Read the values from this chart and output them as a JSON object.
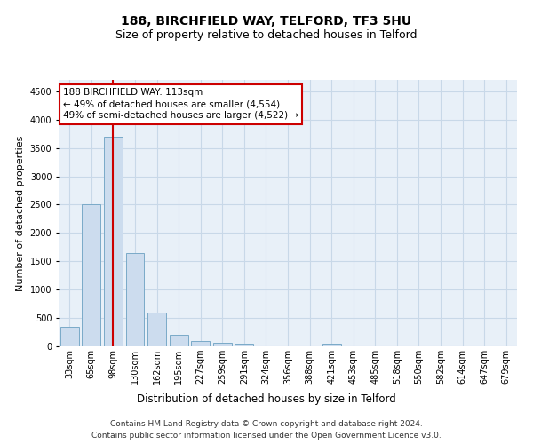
{
  "title": "188, BIRCHFIELD WAY, TELFORD, TF3 5HU",
  "subtitle": "Size of property relative to detached houses in Telford",
  "xlabel": "Distribution of detached houses by size in Telford",
  "ylabel": "Number of detached properties",
  "categories": [
    "33sqm",
    "65sqm",
    "98sqm",
    "130sqm",
    "162sqm",
    "195sqm",
    "227sqm",
    "259sqm",
    "291sqm",
    "324sqm",
    "356sqm",
    "388sqm",
    "421sqm",
    "453sqm",
    "485sqm",
    "518sqm",
    "550sqm",
    "582sqm",
    "614sqm",
    "647sqm",
    "679sqm"
  ],
  "values": [
    350,
    2500,
    3700,
    1650,
    600,
    200,
    100,
    60,
    40,
    0,
    0,
    0,
    50,
    0,
    0,
    0,
    0,
    0,
    0,
    0,
    0
  ],
  "bar_color": "#ccdcee",
  "bar_edge_color": "#7aaac8",
  "red_line_index": 2,
  "property_label": "188 BIRCHFIELD WAY: 113sqm",
  "annotation_line1": "← 49% of detached houses are smaller (4,554)",
  "annotation_line2": "49% of semi-detached houses are larger (4,522) →",
  "annotation_box_facecolor": "#ffffff",
  "annotation_box_edgecolor": "#cc0000",
  "ylim": [
    0,
    4700
  ],
  "yticks": [
    0,
    500,
    1000,
    1500,
    2000,
    2500,
    3000,
    3500,
    4000,
    4500
  ],
  "grid_color": "#c8d8e8",
  "background_color": "#e8f0f8",
  "footer_line1": "Contains HM Land Registry data © Crown copyright and database right 2024.",
  "footer_line2": "Contains public sector information licensed under the Open Government Licence v3.0.",
  "title_fontsize": 10,
  "subtitle_fontsize": 9,
  "xlabel_fontsize": 8.5,
  "ylabel_fontsize": 8,
  "tick_fontsize": 7,
  "annotation_fontsize": 7.5,
  "footer_fontsize": 6.5
}
